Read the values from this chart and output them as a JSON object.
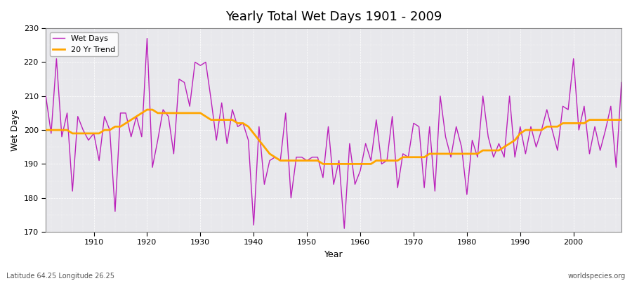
{
  "title": "Yearly Total Wet Days 1901 - 2009",
  "xlabel": "Year",
  "ylabel": "Wet Days",
  "subtitle": "Latitude 64.25 Longitude 26.25",
  "watermark": "worldspecies.org",
  "xlim": [
    1901,
    2009
  ],
  "ylim": [
    170,
    230
  ],
  "yticks": [
    170,
    180,
    190,
    200,
    210,
    220,
    230
  ],
  "xticks": [
    1910,
    1920,
    1930,
    1940,
    1950,
    1960,
    1970,
    1980,
    1990,
    2000
  ],
  "wet_days_color": "#bb22bb",
  "trend_color": "#ffa500",
  "bg_color": "#e8e8ec",
  "fig_color": "#ffffff",
  "legend_wet": "Wet Days",
  "legend_trend": "20 Yr Trend",
  "years": [
    1901,
    1902,
    1903,
    1904,
    1905,
    1906,
    1907,
    1908,
    1909,
    1910,
    1911,
    1912,
    1913,
    1914,
    1915,
    1916,
    1917,
    1918,
    1919,
    1920,
    1921,
    1922,
    1923,
    1924,
    1925,
    1926,
    1927,
    1928,
    1929,
    1930,
    1931,
    1932,
    1933,
    1934,
    1935,
    1936,
    1937,
    1938,
    1939,
    1940,
    1941,
    1942,
    1943,
    1944,
    1945,
    1946,
    1947,
    1948,
    1949,
    1950,
    1951,
    1952,
    1953,
    1954,
    1955,
    1956,
    1957,
    1958,
    1959,
    1960,
    1961,
    1962,
    1963,
    1964,
    1965,
    1966,
    1967,
    1968,
    1969,
    1970,
    1971,
    1972,
    1973,
    1974,
    1975,
    1976,
    1977,
    1978,
    1979,
    1980,
    1981,
    1982,
    1983,
    1984,
    1985,
    1986,
    1987,
    1988,
    1989,
    1990,
    1991,
    1992,
    1993,
    1994,
    1995,
    1996,
    1997,
    1998,
    1999,
    2000,
    2001,
    2002,
    2003,
    2004,
    2005,
    2006,
    2007,
    2008,
    2009
  ],
  "wet_days": [
    210,
    199,
    221,
    198,
    205,
    182,
    204,
    200,
    197,
    199,
    191,
    204,
    200,
    176,
    205,
    205,
    198,
    204,
    198,
    227,
    189,
    197,
    206,
    204,
    193,
    215,
    214,
    207,
    220,
    219,
    220,
    209,
    197,
    208,
    196,
    206,
    201,
    202,
    197,
    172,
    201,
    184,
    191,
    192,
    191,
    205,
    180,
    192,
    192,
    191,
    192,
    192,
    186,
    201,
    184,
    191,
    171,
    196,
    184,
    188,
    196,
    191,
    203,
    190,
    191,
    204,
    183,
    193,
    192,
    202,
    201,
    183,
    201,
    182,
    210,
    198,
    192,
    201,
    195,
    181,
    197,
    192,
    210,
    198,
    192,
    196,
    192,
    210,
    192,
    201,
    193,
    201,
    195,
    200,
    206,
    200,
    194,
    207,
    206,
    221,
    200,
    207,
    193,
    201,
    194,
    200,
    207,
    189,
    214
  ],
  "trend_values": [
    200,
    200,
    200,
    200,
    200,
    199,
    199,
    199,
    199,
    199,
    199,
    200,
    200,
    201,
    201,
    202,
    203,
    204,
    205,
    206,
    206,
    205,
    205,
    205,
    205,
    205,
    205,
    205,
    205,
    205,
    204,
    203,
    203,
    203,
    203,
    203,
    202,
    202,
    201,
    199,
    197,
    195,
    193,
    192,
    191,
    191,
    191,
    191,
    191,
    191,
    191,
    191,
    190,
    190,
    190,
    190,
    190,
    190,
    190,
    190,
    190,
    190,
    191,
    191,
    191,
    191,
    191,
    192,
    192,
    192,
    192,
    192,
    193,
    193,
    193,
    193,
    193,
    193,
    193,
    193,
    193,
    193,
    194,
    194,
    194,
    194,
    195,
    196,
    197,
    199,
    200,
    200,
    200,
    200,
    201,
    201,
    201,
    202,
    202,
    202,
    202,
    202,
    203,
    203,
    203,
    203,
    203,
    203,
    203
  ]
}
